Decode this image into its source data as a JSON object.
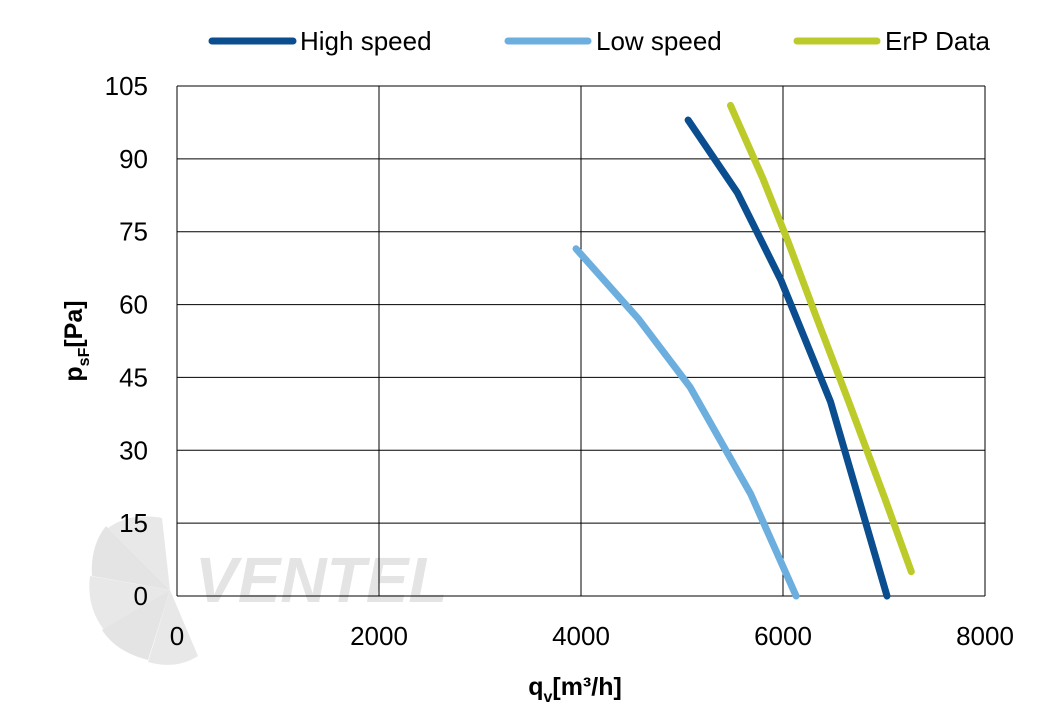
{
  "chart_data": {
    "type": "line",
    "title": "",
    "xlabel_main": "q",
    "xlabel_sub": "v",
    "xlabel_unit": "[m³/h]",
    "ylabel_main": "p",
    "ylabel_sub": "sF",
    "ylabel_unit": "[Pa]",
    "xlim": [
      0,
      8000
    ],
    "ylim": [
      0,
      105
    ],
    "xticks": [
      0,
      2000,
      4000,
      6000,
      8000
    ],
    "yticks": [
      0,
      15,
      30,
      45,
      60,
      75,
      90,
      105
    ],
    "xtick_labels": [
      "0",
      "2000",
      "4000",
      "6000",
      "8000"
    ],
    "ytick_labels": [
      "0",
      "15",
      "30",
      "45",
      "60",
      "75",
      "90",
      "105"
    ],
    "grid": true,
    "legend_position": "top",
    "series": [
      {
        "name": "High speed",
        "color": "#0b4e8f",
        "x": [
          5060,
          5550,
          5980,
          6470,
          7030
        ],
        "y": [
          98,
          83,
          65,
          40,
          0
        ]
      },
      {
        "name": "Low speed",
        "color": "#6cafdf",
        "x": [
          3950,
          4570,
          5080,
          5680,
          6130
        ],
        "y": [
          71.5,
          57,
          43,
          21,
          0
        ]
      },
      {
        "name": "ErP Data",
        "color": "#bccb2a",
        "x": [
          5480,
          5800,
          6050,
          6320,
          6650,
          7010,
          7270
        ],
        "y": [
          101,
          86,
          73,
          58,
          40,
          20,
          5
        ]
      }
    ],
    "watermark": "VENTEL"
  }
}
